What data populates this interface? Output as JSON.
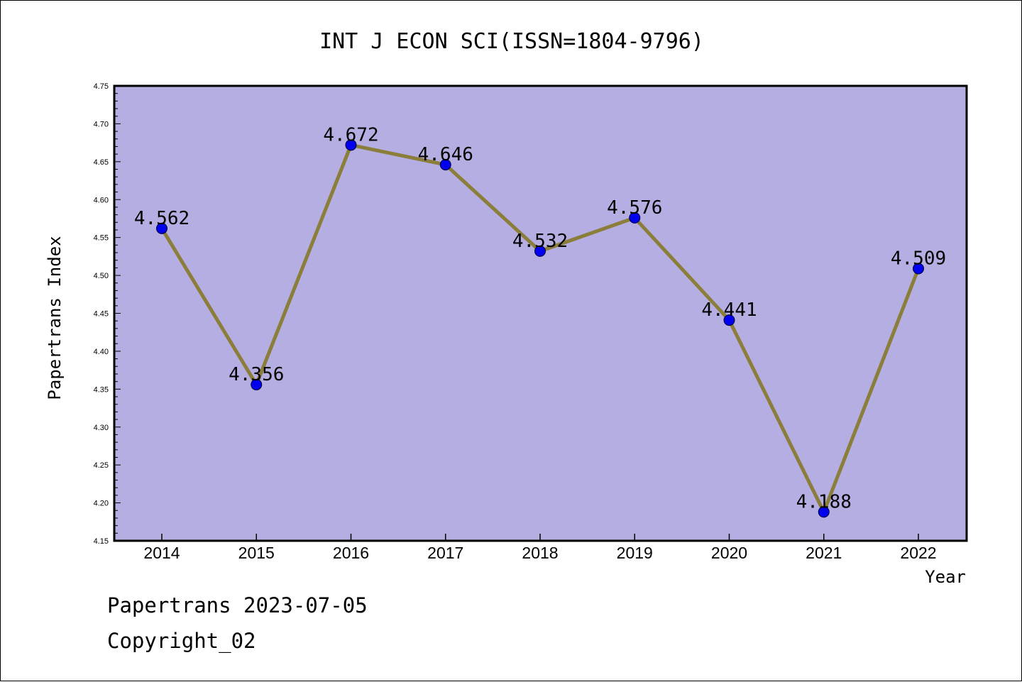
{
  "chart_data": {
    "type": "line",
    "title": "INT J ECON SCI(ISSN=1804-9796)",
    "xlabel": "Year",
    "ylabel": "Papertrans Index",
    "categories": [
      "2014",
      "2015",
      "2016",
      "2017",
      "2018",
      "2019",
      "2020",
      "2021",
      "2022"
    ],
    "values": [
      4.562,
      4.356,
      4.672,
      4.646,
      4.532,
      4.576,
      4.441,
      4.188,
      4.509
    ],
    "data_labels": [
      "4.562",
      "4.356",
      "4.672",
      "4.646",
      "4.532",
      "4.576",
      "4.441",
      "4.188",
      "4.509"
    ],
    "ylim": [
      4.15,
      4.75
    ],
    "yticks": [
      "4.15",
      "4.20",
      "4.25",
      "4.30",
      "4.35",
      "4.40",
      "4.45",
      "4.50",
      "4.55",
      "4.60",
      "4.65",
      "4.70",
      "4.75"
    ],
    "grid": false,
    "legend": "none",
    "colors": {
      "plot_background": "#b5aee2",
      "line": "#8b7d3a",
      "marker": "#0000ee"
    }
  },
  "footer": {
    "line1": "Papertrans 2023-07-05",
    "line2": "Copyright_02"
  }
}
